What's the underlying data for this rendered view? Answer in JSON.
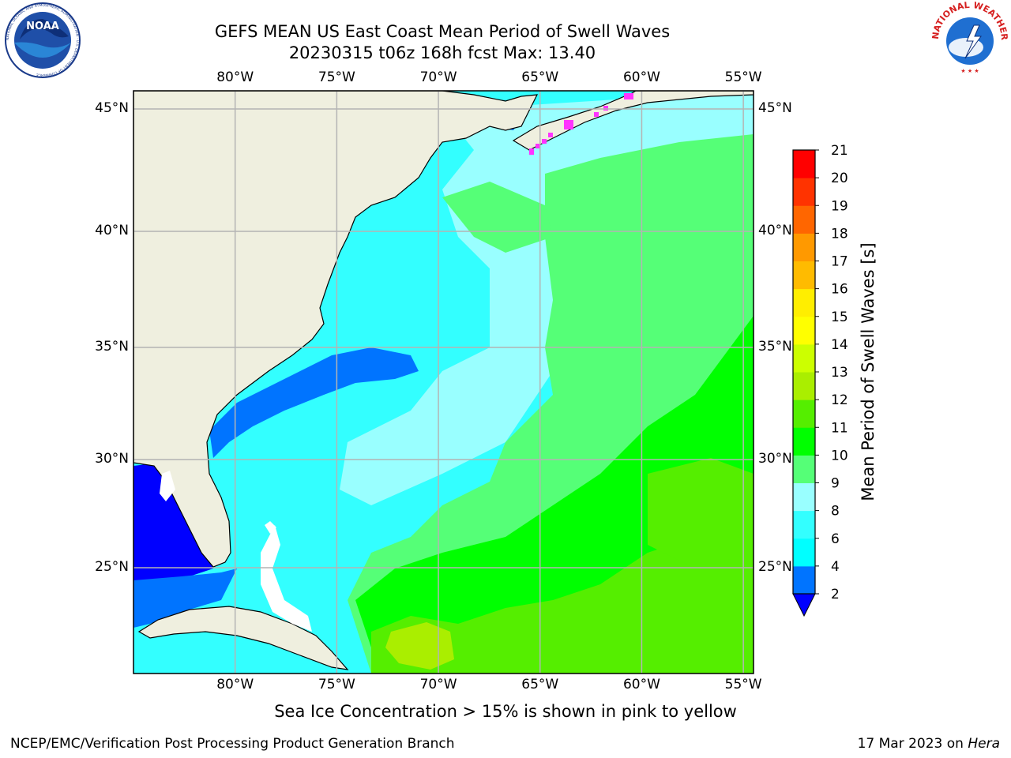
{
  "title": {
    "line1": "GEFS MEAN US East Coast Mean Period of Swell Waves",
    "line2": "20230315 t06z 168h fcst   Max: 13.40"
  },
  "logos": {
    "noaa": {
      "text": "NOAA",
      "ring_text": "NATIONAL OCEANIC AND ATMOSPHERIC ADMINISTRATION · U.S. DEPARTMENT OF COMMERCE"
    },
    "nws": {
      "ring_text": "NATIONAL WEATHER SERVICE"
    }
  },
  "map": {
    "lon_labels": [
      "80°W",
      "75°W",
      "70°W",
      "65°W",
      "60°W",
      "55°W"
    ],
    "lat_labels": [
      "45°N",
      "40°N",
      "35°N",
      "30°N",
      "25°N"
    ],
    "lon_range": [
      -85,
      -54.5
    ],
    "lat_range": [
      20,
      46
    ],
    "grid": true,
    "colors": {
      "land": "#efefdf",
      "ocean_base": "#33ffff",
      "grid": "#b4b4b4"
    }
  },
  "colorbar": {
    "title": "Mean Period of Swell Waves [s]",
    "ticks": [
      "2",
      "4",
      "6",
      "8",
      "9",
      "10",
      "11",
      "12",
      "13",
      "14",
      "15",
      "16",
      "17",
      "18",
      "19",
      "20",
      "21"
    ],
    "colors": [
      "#0000ff",
      "#0074ff",
      "#00ffff",
      "#33ffff",
      "#99ffff",
      "#55ff77",
      "#00ff00",
      "#55ee00",
      "#aaee00",
      "#ccff00",
      "#ffff00",
      "#ffee00",
      "#ffbb00",
      "#ff9900",
      "#ff6600",
      "#ff3300",
      "#ff0000"
    ]
  },
  "note": "Sea Ice Concentration > 15% is shown in pink to yellow",
  "footer": {
    "left": "NCEP/EMC/Verification Post Processing Product Generation Branch",
    "right_prefix": "17 Mar 2023 on ",
    "right_host": "Hera"
  }
}
